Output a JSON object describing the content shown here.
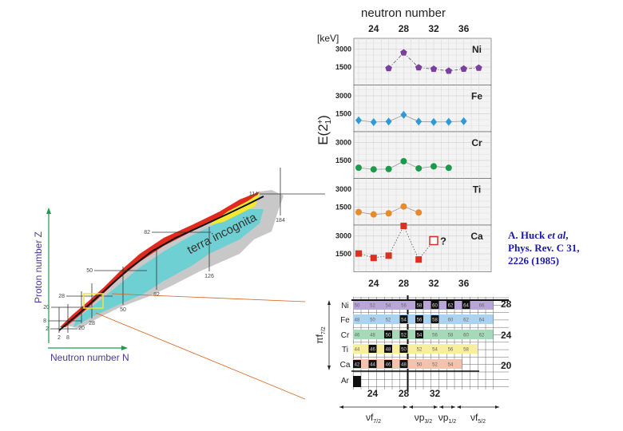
{
  "nuclide_chart": {
    "y_axis_label": "Proton number Z",
    "x_axis_label": "Neutron number N",
    "region_label": "terra incognita",
    "magic_z_labels": [
      "2",
      "8",
      "20",
      "28",
      "50",
      "82",
      "114"
    ],
    "magic_n_labels": [
      "2",
      "8",
      "20",
      "28",
      "50",
      "82",
      "126",
      "184"
    ],
    "colors": {
      "stable": "#111111",
      "known_red": "#e02a1e",
      "yellow": "#f5e830",
      "cyan": "#6fd0d4",
      "unknown": "#c8c8c8",
      "axis": "#1e9a50",
      "axis_label": "#4a3a9a",
      "zoom_box": "#f2e23a",
      "zoom_lines": "#d9601a"
    }
  },
  "chart_data": {
    "type": "line",
    "title": "neutron number",
    "ylabel": "E(2+1)",
    "yunit": "[keV]",
    "xlabel": "neutron number",
    "x_ticks": [
      24,
      28,
      32,
      36
    ],
    "xlim": [
      21,
      39
    ],
    "ylim": [
      0,
      3900
    ],
    "y_ticks": [
      1500,
      3000
    ],
    "grid": true,
    "series": [
      {
        "name": "Ni",
        "marker": "pentagon",
        "color": "#7b3f9e",
        "line": "dashdot",
        "x": [
          26,
          28,
          30,
          32,
          34,
          36,
          38
        ],
        "y": [
          1392,
          2700,
          1454,
          1333,
          1173,
          1346,
          1425
        ]
      },
      {
        "name": "Fe",
        "marker": "diamond",
        "color": "#2f9ad8",
        "line": "solid",
        "x": [
          22,
          24,
          26,
          28,
          30,
          32,
          34,
          36
        ],
        "y": [
          950,
          800,
          849,
          1408,
          847,
          811,
          824,
          877
        ]
      },
      {
        "name": "Cr",
        "marker": "circle",
        "color": "#1a9a4a",
        "line": "solid",
        "x": [
          22,
          24,
          26,
          28,
          30,
          32,
          34
        ],
        "y": [
          892,
          752,
          783,
          1434,
          835,
          1007,
          880
        ]
      },
      {
        "name": "Ti",
        "marker": "circle",
        "color": "#e8892a",
        "line": "solid",
        "x": [
          22,
          24,
          26,
          28,
          30
        ],
        "y": [
          1083,
          889,
          984,
          1554,
          1050
        ]
      },
      {
        "name": "Ca",
        "marker": "square",
        "color": "#d9301f",
        "line": "dotted",
        "x": [
          22,
          24,
          26,
          28,
          30
        ],
        "y": [
          1525,
          1157,
          1346,
          3832,
          1027
        ],
        "uncertain_point": {
          "x": 32,
          "y": 2600,
          "label": "?"
        }
      }
    ]
  },
  "shell_grid": {
    "rows": [
      {
        "element": "Ni",
        "color": "#b9a6d8",
        "masses": [
          "50",
          "52",
          "54",
          "56",
          "58",
          "60",
          "62",
          "64",
          "66"
        ],
        "stable": [
          "58",
          "60",
          "62",
          "64"
        ]
      },
      {
        "element": "Fe",
        "color": "#a9d3f0",
        "masses": [
          "48",
          "50",
          "52",
          "54",
          "56",
          "58",
          "60",
          "62",
          "64"
        ],
        "stable": [
          "54",
          "56",
          "58"
        ]
      },
      {
        "element": "Cr",
        "color": "#a6d9b8",
        "masses": [
          "46",
          "48",
          "50",
          "52",
          "54",
          "56",
          "58",
          "60",
          "62"
        ],
        "stable": [
          "50",
          "52",
          "54"
        ]
      },
      {
        "element": "Ti",
        "color": "#f7ee9e",
        "masses": [
          "44",
          "46",
          "48",
          "50",
          "52",
          "54",
          "56",
          "58"
        ],
        "stable": [
          "46",
          "48",
          "50"
        ]
      },
      {
        "element": "Ca",
        "color": "#f3c3ad",
        "masses": [
          "42",
          "44",
          "46",
          "48",
          "50",
          "52",
          "54"
        ],
        "stable": [
          "42",
          "44",
          "46",
          "48"
        ]
      },
      {
        "element": "Ar",
        "color": "#ffffff",
        "masses": [],
        "stable": []
      }
    ],
    "n_ticks": [
      "24",
      "28",
      "32"
    ],
    "magic_z": [
      "28",
      "24",
      "20"
    ],
    "proton_orbital": "πf7/2",
    "neutron_orbitals": [
      {
        "nu": "ν",
        "l": "f",
        "j": "7/2"
      },
      {
        "nu": "ν",
        "l": "p",
        "j": "3/2"
      },
      {
        "nu": "ν",
        "l": "p",
        "j": "1/2"
      },
      {
        "nu": "ν",
        "l": "f",
        "j": "5/2"
      }
    ]
  },
  "citation": {
    "line1_author": "A. Huck ",
    "line1_etal": "et al",
    "line1_end": ",",
    "line2": "Phys. Rev. C 31,",
    "line3": "2226 (1985)"
  }
}
